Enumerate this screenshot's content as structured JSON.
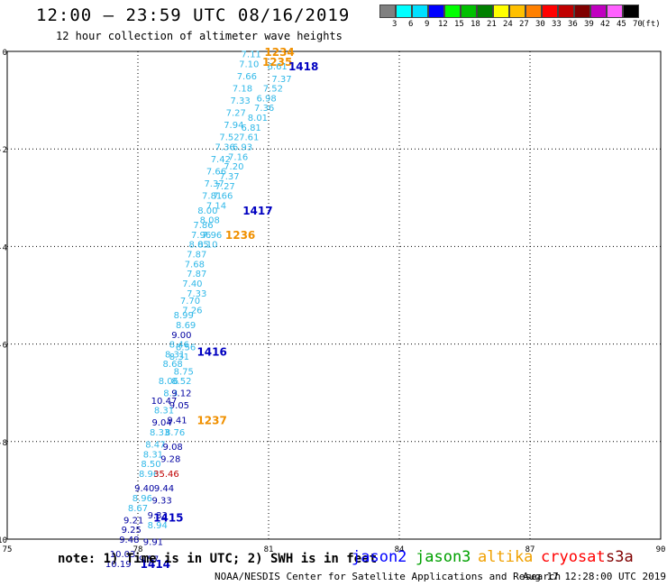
{
  "header": {
    "title": "12:00 — 23:59 UTC 08/16/2019",
    "subtitle": "12 hour collection of altimeter wave heights"
  },
  "colorbar": {
    "colors": [
      "#808080",
      "#00ffff",
      "#00e0ff",
      "#0000ff",
      "#00ff00",
      "#00c000",
      "#008000",
      "#ffff00",
      "#ffc000",
      "#ff8000",
      "#ff0000",
      "#c00000",
      "#800000",
      "#c000c0",
      "#ff60ff",
      "#000000"
    ],
    "labels": [
      "3",
      "6",
      "9",
      "12",
      "15",
      "18",
      "21",
      "24",
      "27",
      "30",
      "33",
      "36",
      "39",
      "42",
      "45",
      "70"
    ],
    "unit": "(ft)"
  },
  "axes": {
    "x_ticks": [
      "75",
      "78",
      "81",
      "84",
      "87",
      "90"
    ],
    "y_ticks": [
      "0",
      "-2",
      "-4",
      "-6",
      "-8",
      "-10"
    ]
  },
  "map_data": {
    "lon_range": [
      75,
      90
    ],
    "lat_range": [
      -10,
      0
    ],
    "wave_labels": [
      {
        "lon": 80.6,
        "lat": -0.05,
        "text": "7.11",
        "color": "#30b8e8"
      },
      {
        "lon": 80.55,
        "lat": -0.25,
        "text": "7.10",
        "color": "#30b8e8"
      },
      {
        "lon": 81.2,
        "lat": -0.3,
        "text": "6.61",
        "color": "#30b8e8"
      },
      {
        "lon": 80.5,
        "lat": -0.5,
        "text": "7.66",
        "color": "#30b8e8"
      },
      {
        "lon": 81.3,
        "lat": -0.55,
        "text": "7.37",
        "color": "#30b8e8"
      },
      {
        "lon": 80.4,
        "lat": -0.75,
        "text": "7.18",
        "color": "#30b8e8"
      },
      {
        "lon": 81.1,
        "lat": -0.75,
        "text": "7.52",
        "color": "#30b8e8"
      },
      {
        "lon": 80.35,
        "lat": -1.0,
        "text": "7.33",
        "color": "#30b8e8"
      },
      {
        "lon": 80.95,
        "lat": -0.95,
        "text": "6.98",
        "color": "#30b8e8"
      },
      {
        "lon": 80.9,
        "lat": -1.15,
        "text": "7.36",
        "color": "#30b8e8"
      },
      {
        "lon": 80.25,
        "lat": -1.25,
        "text": "7.27",
        "color": "#30b8e8"
      },
      {
        "lon": 80.75,
        "lat": -1.35,
        "text": "8.01",
        "color": "#30b8e8"
      },
      {
        "lon": 80.2,
        "lat": -1.5,
        "text": "7.94",
        "color": "#30b8e8"
      },
      {
        "lon": 80.6,
        "lat": -1.55,
        "text": "6.81",
        "color": "#30b8e8"
      },
      {
        "lon": 80.1,
        "lat": -1.75,
        "text": "7.52",
        "color": "#30b8e8"
      },
      {
        "lon": 80.55,
        "lat": -1.75,
        "text": "7.61",
        "color": "#30b8e8"
      },
      {
        "lon": 80.0,
        "lat": -1.95,
        "text": "7.36",
        "color": "#30b8e8"
      },
      {
        "lon": 80.4,
        "lat": -1.95,
        "text": "6.93",
        "color": "#30b8e8"
      },
      {
        "lon": 80.3,
        "lat": -2.15,
        "text": "7.16",
        "color": "#30b8e8"
      },
      {
        "lon": 79.9,
        "lat": -2.2,
        "text": "7.42",
        "color": "#30b8e8"
      },
      {
        "lon": 80.2,
        "lat": -2.35,
        "text": "7.20",
        "color": "#30b8e8"
      },
      {
        "lon": 79.8,
        "lat": -2.45,
        "text": "7.66",
        "color": "#30b8e8"
      },
      {
        "lon": 80.1,
        "lat": -2.55,
        "text": "7.37",
        "color": "#30b8e8"
      },
      {
        "lon": 79.75,
        "lat": -2.7,
        "text": "7.37",
        "color": "#30b8e8"
      },
      {
        "lon": 80.0,
        "lat": -2.75,
        "text": "7.27",
        "color": "#30b8e8"
      },
      {
        "lon": 79.7,
        "lat": -2.95,
        "text": "7.81",
        "color": "#30b8e8"
      },
      {
        "lon": 79.95,
        "lat": -2.95,
        "text": "7.66",
        "color": "#30b8e8"
      },
      {
        "lon": 79.8,
        "lat": -3.15,
        "text": "7.14",
        "color": "#30b8e8"
      },
      {
        "lon": 79.6,
        "lat": -3.25,
        "text": "8.00",
        "color": "#30b8e8"
      },
      {
        "lon": 79.65,
        "lat": -3.45,
        "text": "8.08",
        "color": "#30b8e8"
      },
      {
        "lon": 79.5,
        "lat": -3.55,
        "text": "7.86",
        "color": "#30b8e8"
      },
      {
        "lon": 79.45,
        "lat": -3.75,
        "text": "7.96",
        "color": "#30b8e8"
      },
      {
        "lon": 79.7,
        "lat": -3.75,
        "text": "7.96",
        "color": "#30b8e8"
      },
      {
        "lon": 79.4,
        "lat": -3.95,
        "text": "8.05",
        "color": "#30b8e8"
      },
      {
        "lon": 79.6,
        "lat": -3.95,
        "text": "8.10",
        "color": "#30b8e8"
      },
      {
        "lon": 79.35,
        "lat": -4.15,
        "text": "7.87",
        "color": "#30b8e8"
      },
      {
        "lon": 79.3,
        "lat": -4.35,
        "text": "7.68",
        "color": "#30b8e8"
      },
      {
        "lon": 79.35,
        "lat": -4.55,
        "text": "7.87",
        "color": "#30b8e8"
      },
      {
        "lon": 79.25,
        "lat": -4.75,
        "text": "7.40",
        "color": "#30b8e8"
      },
      {
        "lon": 79.35,
        "lat": -4.95,
        "text": "7.33",
        "color": "#30b8e8"
      },
      {
        "lon": 79.2,
        "lat": -5.1,
        "text": "7.70",
        "color": "#30b8e8"
      },
      {
        "lon": 79.25,
        "lat": -5.3,
        "text": "7.26",
        "color": "#30b8e8"
      },
      {
        "lon": 79.05,
        "lat": -5.4,
        "text": "8.99",
        "color": "#30b8e8"
      },
      {
        "lon": 79.1,
        "lat": -5.6,
        "text": "8.69",
        "color": "#30b8e8"
      },
      {
        "lon": 79.0,
        "lat": -5.8,
        "text": "9.00",
        "color": "#0000a0"
      },
      {
        "lon": 78.95,
        "lat": -6.0,
        "text": "8.46",
        "color": "#30b8e8"
      },
      {
        "lon": 79.1,
        "lat": -6.05,
        "text": "8.56",
        "color": "#30b8e8"
      },
      {
        "lon": 78.85,
        "lat": -6.2,
        "text": "8.31",
        "color": "#30b8e8"
      },
      {
        "lon": 78.95,
        "lat": -6.25,
        "text": "8.31",
        "color": "#30b8e8"
      },
      {
        "lon": 78.8,
        "lat": -6.4,
        "text": "8.68",
        "color": "#30b8e8"
      },
      {
        "lon": 79.05,
        "lat": -6.55,
        "text": "8.75",
        "color": "#30b8e8"
      },
      {
        "lon": 78.7,
        "lat": -6.75,
        "text": "8.06",
        "color": "#30b8e8"
      },
      {
        "lon": 79.0,
        "lat": -6.75,
        "text": "8.52",
        "color": "#30b8e8"
      },
      {
        "lon": 78.75,
        "lat": -7.0,
        "text": "8.3",
        "color": "#30b8e8"
      },
      {
        "lon": 79.0,
        "lat": -7.0,
        "text": "9.12",
        "color": "#0000a0"
      },
      {
        "lon": 78.6,
        "lat": -7.15,
        "text": "10.47",
        "color": "#0000a0"
      },
      {
        "lon": 78.95,
        "lat": -7.25,
        "text": "9.05",
        "color": "#0000a0"
      },
      {
        "lon": 78.6,
        "lat": -7.35,
        "text": "8.31",
        "color": "#30b8e8"
      },
      {
        "lon": 78.55,
        "lat": -7.6,
        "text": "9.04",
        "color": "#0000a0"
      },
      {
        "lon": 78.9,
        "lat": -7.55,
        "text": "9.41",
        "color": "#0000a0"
      },
      {
        "lon": 78.5,
        "lat": -7.8,
        "text": "8.33",
        "color": "#30b8e8"
      },
      {
        "lon": 78.85,
        "lat": -7.8,
        "text": "8.76",
        "color": "#30b8e8"
      },
      {
        "lon": 78.4,
        "lat": -8.05,
        "text": "8.47",
        "color": "#30b8e8"
      },
      {
        "lon": 78.8,
        "lat": -8.1,
        "text": "9.08",
        "color": "#0000a0"
      },
      {
        "lon": 78.35,
        "lat": -8.25,
        "text": "8.31",
        "color": "#30b8e8"
      },
      {
        "lon": 78.75,
        "lat": -8.35,
        "text": "9.28",
        "color": "#0000a0"
      },
      {
        "lon": 78.3,
        "lat": -8.45,
        "text": "8.50",
        "color": "#30b8e8"
      },
      {
        "lon": 78.25,
        "lat": -8.65,
        "text": "8.96",
        "color": "#30b8e8"
      },
      {
        "lon": 78.65,
        "lat": -8.65,
        "text": "35.46",
        "color": "#c00000"
      },
      {
        "lon": 78.15,
        "lat": -8.95,
        "text": "9.40",
        "color": "#0000a0"
      },
      {
        "lon": 78.6,
        "lat": -8.95,
        "text": "9.44",
        "color": "#0000a0"
      },
      {
        "lon": 78.1,
        "lat": -9.15,
        "text": "8.96",
        "color": "#30b8e8"
      },
      {
        "lon": 78.55,
        "lat": -9.2,
        "text": "9.33",
        "color": "#0000a0"
      },
      {
        "lon": 78.0,
        "lat": -9.35,
        "text": "8.67",
        "color": "#30b8e8"
      },
      {
        "lon": 78.45,
        "lat": -9.5,
        "text": "9.33",
        "color": "#0000a0"
      },
      {
        "lon": 77.9,
        "lat": -9.6,
        "text": "9.21",
        "color": "#0000a0"
      },
      {
        "lon": 78.45,
        "lat": -9.7,
        "text": "8.94",
        "color": "#30b8e8"
      },
      {
        "lon": 77.85,
        "lat": -9.8,
        "text": "9.25",
        "color": "#0000a0"
      },
      {
        "lon": 77.8,
        "lat": -10.0,
        "text": "9.48",
        "color": "#0000a0"
      },
      {
        "lon": 78.35,
        "lat": -10.05,
        "text": "9.91",
        "color": "#0000a0"
      },
      {
        "lon": 77.65,
        "lat": -10.3,
        "text": "10.03",
        "color": "#0000a0"
      },
      {
        "lon": 77.55,
        "lat": -10.5,
        "text": "10.19",
        "color": "#0000a0"
      },
      {
        "lon": 78.25,
        "lat": -10.4,
        "text": "9.57",
        "color": "#0000a0"
      }
    ],
    "pass_labels": [
      {
        "lon": 81.25,
        "lat": 0.0,
        "text": "1234",
        "color": "#f09000"
      },
      {
        "lon": 81.2,
        "lat": -0.2,
        "text": "1235",
        "color": "#f09000"
      },
      {
        "lon": 81.8,
        "lat": -0.3,
        "text": "1418",
        "color": "#0000c0"
      },
      {
        "lon": 80.75,
        "lat": -3.25,
        "text": "1417",
        "color": "#0000c0"
      },
      {
        "lon": 80.35,
        "lat": -3.75,
        "text": "1236",
        "color": "#f09000"
      },
      {
        "lon": 79.7,
        "lat": -6.15,
        "text": "1416",
        "color": "#0000c0"
      },
      {
        "lon": 79.7,
        "lat": -7.55,
        "text": "1237",
        "color": "#f09000"
      },
      {
        "lon": 78.7,
        "lat": -9.55,
        "text": "1415",
        "color": "#0000c0"
      },
      {
        "lon": 78.4,
        "lat": -10.5,
        "text": "1414",
        "color": "#0000c0"
      }
    ]
  },
  "note": "note: 1) Time is in UTC; 2) SWH is in feet",
  "legend": [
    {
      "name": "jason2",
      "color": "#0000ff"
    },
    {
      "name": "jason3",
      "color": "#00a000"
    },
    {
      "name": "altika",
      "color": "#f0a000"
    },
    {
      "name": "cryosat",
      "color": "#ff0000"
    },
    {
      "name": "s3a",
      "color": "#800000"
    }
  ],
  "footer": {
    "credit": "NOAA/NESDIS Center for Satellite Applications and Research",
    "timestamp": "Aug 17 12:28:00 UTC 2019"
  }
}
